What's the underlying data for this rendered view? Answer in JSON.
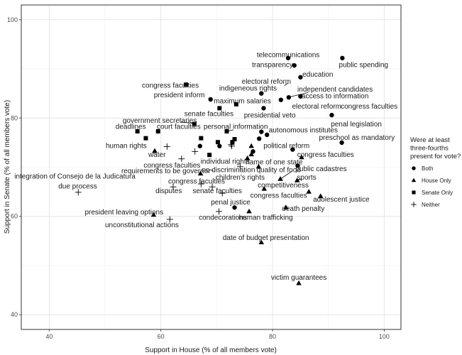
{
  "chart_data": {
    "type": "scatter",
    "xlabel": "Support in House (% of all members vote)",
    "ylabel": "Support in Senate (% of all members vote)",
    "xlim": [
      35,
      103
    ],
    "ylim": [
      37,
      103
    ],
    "xticks": [
      40,
      60,
      80,
      100
    ],
    "yticks": [
      40,
      60,
      80,
      100
    ],
    "grid": true,
    "legend": {
      "placement": "right",
      "title_lines": [
        "Were at least",
        "three-fourths",
        "present for vote?"
      ],
      "entries": [
        {
          "key": "both",
          "label": "Both",
          "shape": "circle"
        },
        {
          "key": "house",
          "label": "House Only",
          "shape": "triangle"
        },
        {
          "key": "senate",
          "label": "Senate Only",
          "shape": "square"
        },
        {
          "key": "neither",
          "label": "Neither",
          "shape": "plus"
        }
      ]
    },
    "points": [
      {
        "x": 82.8,
        "y": 92.2,
        "group": "both"
      },
      {
        "x": 92.5,
        "y": 92.2,
        "group": "both"
      },
      {
        "x": 83.9,
        "y": 90.7,
        "group": "both"
      },
      {
        "x": 85.0,
        "y": 88.3,
        "group": "both"
      },
      {
        "x": 78.0,
        "y": 85.0,
        "group": "both"
      },
      {
        "x": 82.9,
        "y": 84.2,
        "group": "both"
      },
      {
        "x": 85.0,
        "y": 84.4,
        "group": "both"
      },
      {
        "x": 81.5,
        "y": 83.7,
        "group": "both"
      },
      {
        "x": 68.9,
        "y": 83.8,
        "group": "both"
      },
      {
        "x": 78.4,
        "y": 82.0,
        "group": "both"
      },
      {
        "x": 90.6,
        "y": 80.6,
        "group": "both"
      },
      {
        "x": 79.0,
        "y": 76.6,
        "group": "both"
      },
      {
        "x": 78.0,
        "y": 77.2,
        "group": "both"
      },
      {
        "x": 77.6,
        "y": 75.8,
        "group": "both"
      },
      {
        "x": 92.4,
        "y": 75.0,
        "group": "both"
      },
      {
        "x": 67.0,
        "y": 74.3,
        "group": "both"
      },
      {
        "x": 70.5,
        "y": 74.3,
        "group": "both"
      },
      {
        "x": 83.6,
        "y": 73.6,
        "group": "both"
      },
      {
        "x": 76.5,
        "y": 73.2,
        "group": "both"
      },
      {
        "x": 84.5,
        "y": 70.3,
        "group": "both"
      },
      {
        "x": 73.2,
        "y": 61.8,
        "group": "both"
      },
      {
        "x": 67.1,
        "y": 68.7,
        "group": "house"
      },
      {
        "x": 58.9,
        "y": 73.3,
        "group": "house"
      },
      {
        "x": 76.2,
        "y": 74.3,
        "group": "house"
      },
      {
        "x": 76.2,
        "y": 72.6,
        "group": "house"
      },
      {
        "x": 75.5,
        "y": 71.8,
        "group": "house"
      },
      {
        "x": 85.2,
        "y": 72.0,
        "group": "house"
      },
      {
        "x": 77.5,
        "y": 70.1,
        "group": "house"
      },
      {
        "x": 81.4,
        "y": 67.6,
        "group": "house"
      },
      {
        "x": 84.4,
        "y": 67.3,
        "group": "house"
      },
      {
        "x": 78.5,
        "y": 65.6,
        "group": "house"
      },
      {
        "x": 86.5,
        "y": 65.0,
        "group": "house"
      },
      {
        "x": 88.6,
        "y": 64.1,
        "group": "house"
      },
      {
        "x": 82.4,
        "y": 61.8,
        "group": "house"
      },
      {
        "x": 75.8,
        "y": 61.0,
        "group": "house"
      },
      {
        "x": 58.7,
        "y": 60.3,
        "group": "house"
      },
      {
        "x": 78.0,
        "y": 54.7,
        "group": "house"
      },
      {
        "x": 84.7,
        "y": 46.4,
        "group": "house"
      },
      {
        "x": 64.5,
        "y": 86.8,
        "group": "senate"
      },
      {
        "x": 73.5,
        "y": 82.8,
        "group": "senate"
      },
      {
        "x": 70.5,
        "y": 82.0,
        "group": "senate"
      },
      {
        "x": 66.0,
        "y": 78.8,
        "group": "senate"
      },
      {
        "x": 55.8,
        "y": 77.3,
        "group": "senate"
      },
      {
        "x": 59.5,
        "y": 77.3,
        "group": "senate"
      },
      {
        "x": 71.8,
        "y": 77.3,
        "group": "senate"
      },
      {
        "x": 57.3,
        "y": 75.9,
        "group": "senate"
      },
      {
        "x": 67.2,
        "y": 75.9,
        "group": "senate"
      },
      {
        "x": 70.2,
        "y": 75.1,
        "group": "senate"
      },
      {
        "x": 72.8,
        "y": 75.1,
        "group": "senate"
      },
      {
        "x": 73.2,
        "y": 75.7,
        "group": "senate"
      },
      {
        "x": 68.7,
        "y": 72.5,
        "group": "senate"
      },
      {
        "x": 45.2,
        "y": 64.9,
        "group": "neither"
      },
      {
        "x": 61.1,
        "y": 74.2,
        "group": "neither"
      },
      {
        "x": 66.1,
        "y": 73.2,
        "group": "neither"
      },
      {
        "x": 72.6,
        "y": 74.6,
        "group": "neither"
      },
      {
        "x": 63.7,
        "y": 71.7,
        "group": "neither"
      },
      {
        "x": 74.2,
        "y": 70.1,
        "group": "neither"
      },
      {
        "x": 62.2,
        "y": 66.0,
        "group": "neither"
      },
      {
        "x": 67.2,
        "y": 66.6,
        "group": "neither"
      },
      {
        "x": 69.2,
        "y": 66.0,
        "group": "neither"
      },
      {
        "x": 71.0,
        "y": 64.7,
        "group": "neither"
      },
      {
        "x": 70.4,
        "y": 61.0,
        "group": "neither"
      },
      {
        "x": 61.6,
        "y": 59.4,
        "group": "neither"
      },
      {
        "x": 72.7,
        "y": 74.3,
        "group": "neither"
      }
    ],
    "labels": [
      {
        "text": "telecommunications",
        "x": 82.8,
        "y": 92.9
      },
      {
        "text": "transparency",
        "x": 80.0,
        "y": 90.9
      },
      {
        "text": "public spending",
        "x": 96.3,
        "y": 90.9
      },
      {
        "text": "education",
        "x": 88.1,
        "y": 88.9
      },
      {
        "text": "electoral reform",
        "x": 78.9,
        "y": 87.5
      },
      {
        "text": "indigeneous rights",
        "x": 75.6,
        "y": 86.1
      },
      {
        "text": "independent candidates",
        "x": 91.2,
        "y": 85.9
      },
      {
        "text": "congress faculties",
        "x": 61.7,
        "y": 86.7
      },
      {
        "text": "access to information",
        "x": 91.2,
        "y": 84.5
      },
      {
        "text": "president inform",
        "x": 63.3,
        "y": 84.7
      },
      {
        "text": "maximum salaries",
        "x": 74.6,
        "y": 83.5
      },
      {
        "text": "electoral reform",
        "x": 87.9,
        "y": 82.4
      },
      {
        "text": "congress faculties",
        "x": 97.3,
        "y": 82.4
      },
      {
        "text": "senate faculties",
        "x": 68.6,
        "y": 80.9
      },
      {
        "text": "presidential veto",
        "x": 79.5,
        "y": 80.6
      },
      {
        "text": "penal legislation",
        "x": 95.0,
        "y": 78.8
      },
      {
        "text": "government secretaries",
        "x": 59.8,
        "y": 79.5
      },
      {
        "text": "personal information",
        "x": 73.4,
        "y": 78.3
      },
      {
        "text": "deadlines",
        "x": 54.6,
        "y": 78.3
      },
      {
        "text": "court faculties",
        "x": 63.2,
        "y": 78.3
      },
      {
        "text": "autonomous institutes",
        "x": 85.5,
        "y": 77.6
      },
      {
        "text": "preschool as mandatory",
        "x": 95.1,
        "y": 76.1
      },
      {
        "text": "human rights",
        "x": 53.8,
        "y": 74.4
      },
      {
        "text": "political reform",
        "x": 82.5,
        "y": 74.4
      },
      {
        "text": "water",
        "x": 59.3,
        "y": 72.6
      },
      {
        "text": "congress faculties",
        "x": 89.5,
        "y": 72.6
      },
      {
        "text": "individual rights",
        "x": 71.5,
        "y": 71.2
      },
      {
        "text": "name of one state",
        "x": 80.3,
        "y": 71.1
      },
      {
        "text": "congress faculties",
        "x": 62.0,
        "y": 70.4
      },
      {
        "text": "public cadastres",
        "x": 88.7,
        "y": 69.7
      },
      {
        "text": "requirements to be governor",
        "x": 60.9,
        "y": 69.3
      },
      {
        "text": "no discrimination",
        "x": 72.1,
        "y": 69.5
      },
      {
        "text": "quality of food",
        "x": 81.1,
        "y": 69.5
      },
      {
        "text": "integration of Consejo de la Judicatura",
        "x": 44.6,
        "y": 68.2
      },
      {
        "text": "children's rights",
        "x": 74.2,
        "y": 68.0
      },
      {
        "text": "sports",
        "x": 86.1,
        "y": 68.0
      },
      {
        "text": "congress faculties",
        "x": 66.4,
        "y": 67.2
      },
      {
        "text": "competitiveness",
        "x": 81.9,
        "y": 66.4
      },
      {
        "text": "due process",
        "x": 45.1,
        "y": 66.2
      },
      {
        "text": "disputes",
        "x": 61.4,
        "y": 65.2
      },
      {
        "text": "senate faculties",
        "x": 70.1,
        "y": 65.2
      },
      {
        "text": "congress faculties",
        "x": 81.1,
        "y": 64.3
      },
      {
        "text": "adolescent justice",
        "x": 92.3,
        "y": 63.5
      },
      {
        "text": "penal justice",
        "x": 72.5,
        "y": 62.9
      },
      {
        "text": "death penalty",
        "x": 85.5,
        "y": 61.6
      },
      {
        "text": "president leaving options",
        "x": 53.4,
        "y": 60.9
      },
      {
        "text": "condecorations",
        "x": 71.1,
        "y": 59.8
      },
      {
        "text": "human trafficking",
        "x": 78.8,
        "y": 59.8
      },
      {
        "text": "unconstitutional actions",
        "x": 56.6,
        "y": 58.3
      },
      {
        "text": "date of budget presentation",
        "x": 78.8,
        "y": 55.7
      },
      {
        "text": "victim guarantees",
        "x": 84.7,
        "y": 47.6
      }
    ],
    "leader_lines": [
      {
        "from": [
          86.4,
          85.2
        ],
        "to": [
          83.1,
          84.3
        ]
      },
      {
        "from": [
          82.8,
          87.1
        ],
        "to": [
          82.1,
          86.6
        ]
      },
      {
        "from": [
          63.6,
          79.2
        ],
        "to": [
          66.0,
          78.9
        ]
      },
      {
        "from": [
          73.0,
          77.6
        ],
        "to": [
          71.8,
          77.3
        ]
      },
      {
        "from": [
          58.6,
          72.8
        ],
        "to": [
          58.9,
          73.3
        ]
      },
      {
        "from": [
          69.4,
          69.3
        ],
        "to": [
          68.7,
          69.5
        ]
      },
      {
        "from": [
          83.5,
          69.2
        ],
        "to": [
          81.4,
          67.6
        ]
      },
      {
        "from": [
          85.2,
          67.6
        ],
        "to": [
          84.4,
          67.3
        ]
      }
    ]
  }
}
